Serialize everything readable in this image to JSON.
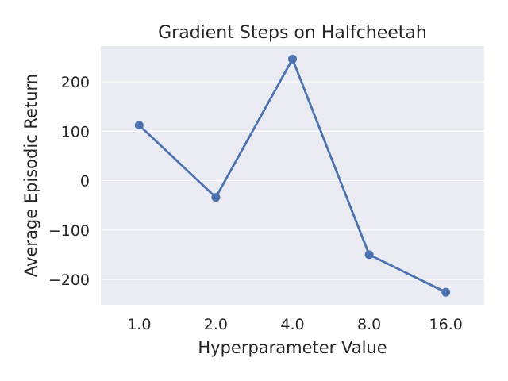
{
  "chart_data": {
    "type": "line",
    "title": "Gradient Steps on Halfcheetah",
    "xlabel": "Hyperparameter Value",
    "ylabel": "Average Episodic Return",
    "categories": [
      "1.0",
      "2.0",
      "4.0",
      "8.0",
      "16.0"
    ],
    "series": [
      {
        "values": [
          112,
          -34,
          246,
          -150,
          -226
        ]
      }
    ],
    "ylim": [
      -250,
      275
    ],
    "yticks": [
      200,
      100,
      0,
      -100,
      -200
    ],
    "ytick_labels": [
      "200",
      "100",
      "0",
      "−100",
      "−200"
    ],
    "grid": true,
    "legend": "none"
  },
  "colors": {
    "plot_background": "#eaeaf2",
    "grid": "#ffffff",
    "series": "#4c72b0",
    "text": "#262626"
  }
}
